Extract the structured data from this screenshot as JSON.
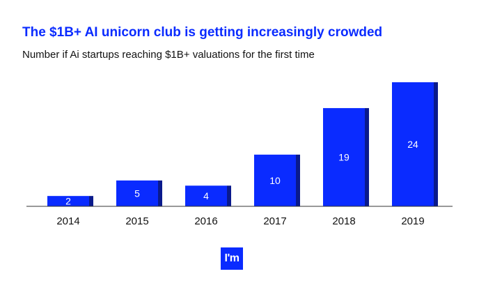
{
  "title": "The $1B+ AI unicorn club is getting increasingly crowded",
  "subtitle": "Number if Ai startups reaching $1B+ valuations for the first time",
  "logo_text": "I'm",
  "colors": {
    "title": "#0a2bff",
    "bar_front": "#0a2bff",
    "bar_side": "#0a1a8c",
    "axis": "#333333",
    "label_inside": "#ffffff",
    "tick": "#111111"
  },
  "chart_data": {
    "type": "bar",
    "categories": [
      "2014",
      "2015",
      "2016",
      "2017",
      "2018",
      "2019"
    ],
    "values": [
      2,
      5,
      4,
      10,
      19,
      24
    ],
    "title": "The $1B+ AI unicorn club is getting increasingly crowded",
    "subtitle": "Number if Ai startups reaching $1B+ valuations for the first time",
    "xlabel": "",
    "ylabel": "",
    "ylim": [
      0,
      24
    ],
    "grid": false,
    "legend": "none",
    "data_labels": "inside"
  }
}
